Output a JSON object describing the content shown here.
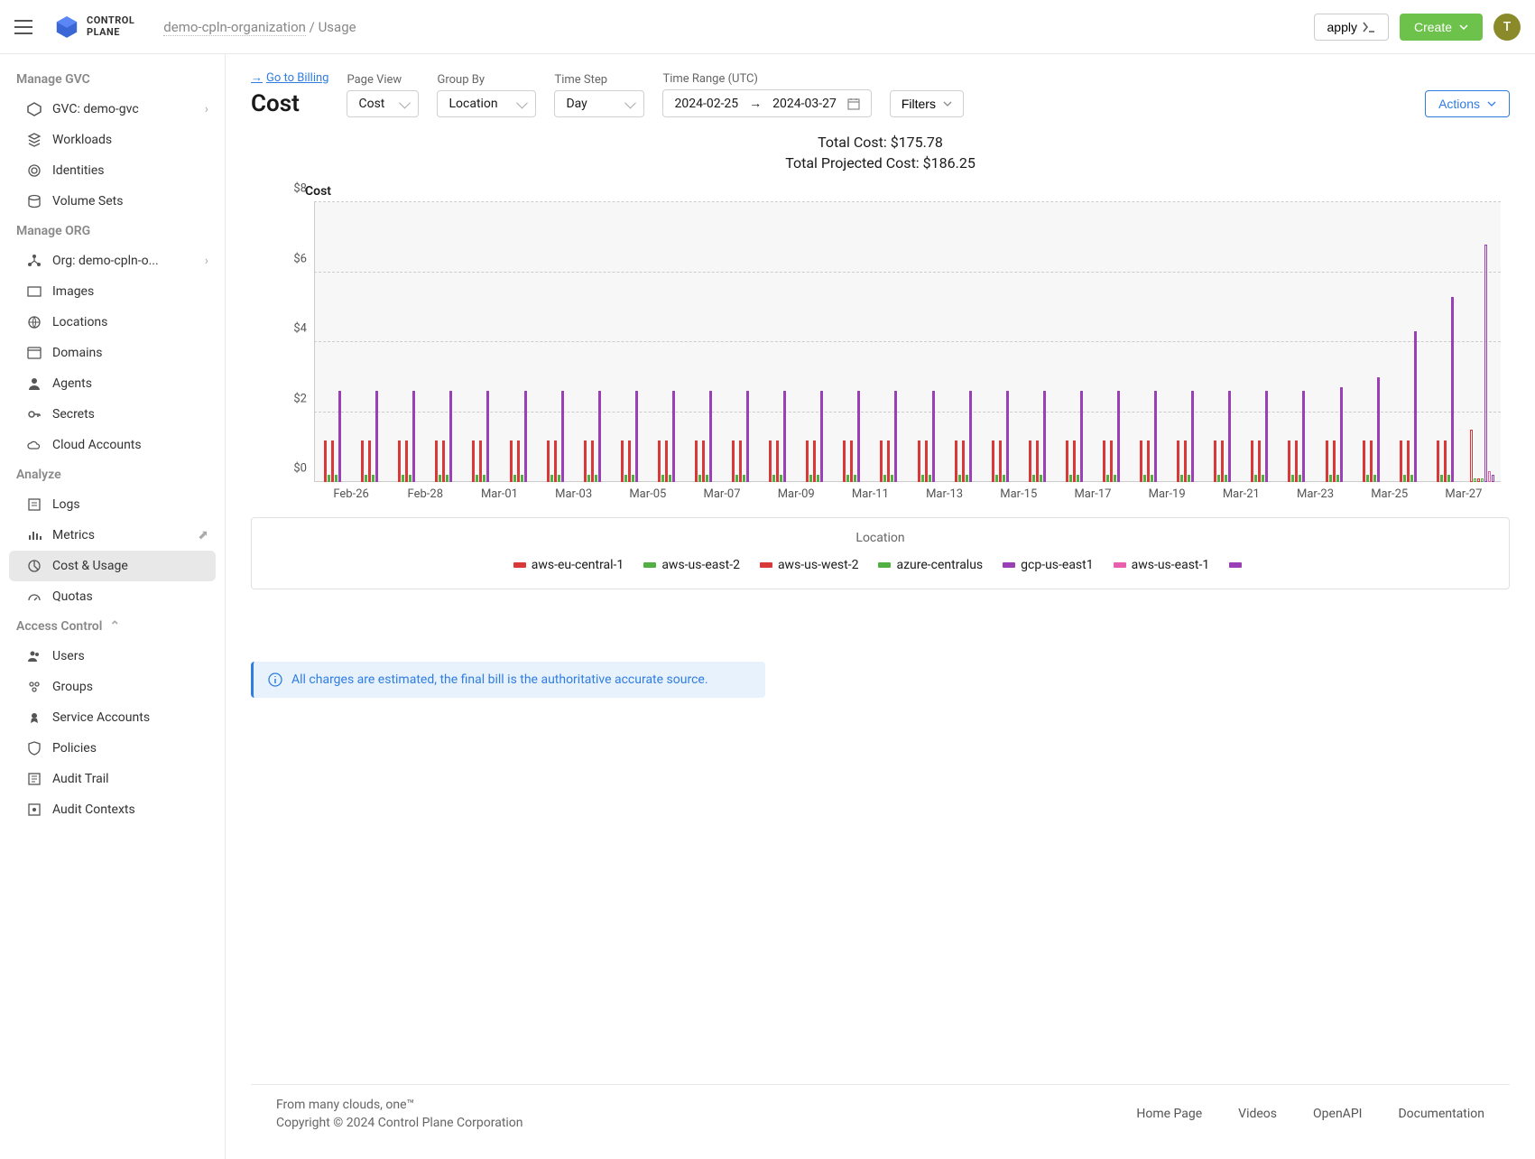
{
  "header": {
    "logo_text_1": "CONTROL",
    "logo_text_2": "PLANE",
    "breadcrumb_org": "demo-cpln-organization",
    "breadcrumb_sep": " / ",
    "breadcrumb_page": "Usage",
    "apply_label": "apply",
    "create_label": "Create",
    "avatar_letter": "T"
  },
  "sidebar": {
    "sections": {
      "gvc": "Manage GVC",
      "org": "Manage ORG",
      "analyze": "Analyze",
      "access": "Access Control"
    },
    "items": {
      "gvc": "GVC: demo-gvc",
      "workloads": "Workloads",
      "identities": "Identities",
      "volume_sets": "Volume Sets",
      "org_item": "Org: demo-cpln-o...",
      "images": "Images",
      "locations": "Locations",
      "domains": "Domains",
      "agents": "Agents",
      "secrets": "Secrets",
      "cloud_accounts": "Cloud Accounts",
      "logs": "Logs",
      "metrics": "Metrics",
      "cost_usage": "Cost & Usage",
      "quotas": "Quotas",
      "users": "Users",
      "groups": "Groups",
      "service_accounts": "Service Accounts",
      "policies": "Policies",
      "audit_trail": "Audit Trail",
      "audit_contexts": "Audit Contexts"
    }
  },
  "toolbar": {
    "go_to_billing": "Go to Billing",
    "page_title": "Cost",
    "page_view_label": "Page View",
    "page_view_value": "Cost",
    "group_by_label": "Group By",
    "group_by_value": "Location",
    "time_step_label": "Time Step",
    "time_step_value": "Day",
    "time_range_label": "Time Range (UTC)",
    "date_from": "2024-02-25",
    "date_to": "2024-03-27",
    "filters_label": "Filters",
    "actions_label": "Actions"
  },
  "totals": {
    "total_cost": "Total Cost: $175.78",
    "total_projected": "Total Projected Cost: $186.25"
  },
  "chart": {
    "type": "grouped-bar",
    "y_title": "Cost",
    "ylim": [
      0,
      8
    ],
    "ytick_step": 2,
    "yticks": [
      "$0",
      "$2",
      "$4",
      "$6",
      "$8"
    ],
    "background_color": "#f7f7f7",
    "grid_color": "#cccccc",
    "series": [
      {
        "name": "aws-eu-central-1",
        "color": "#d93838"
      },
      {
        "name": "aws-us-east-2",
        "color": "#52b043"
      },
      {
        "name": "aws-us-west-2",
        "color": "#d93838"
      },
      {
        "name": "azure-centralus",
        "color": "#52b043"
      },
      {
        "name": "gcp-us-east1",
        "color": "#9a3fb5"
      },
      {
        "name": "aws-us-east-1",
        "color": "#e85fb0"
      },
      {
        "name": "",
        "color": "#9a3fb5"
      }
    ],
    "days": [
      {
        "label": "",
        "v": [
          1.2,
          0.2,
          1.2,
          0.2,
          2.6,
          0,
          0
        ]
      },
      {
        "label": "Feb-26",
        "v": [
          1.2,
          0.2,
          1.2,
          0.2,
          2.6,
          0,
          0
        ]
      },
      {
        "label": "",
        "v": [
          1.2,
          0.2,
          1.2,
          0.2,
          2.6,
          0,
          0
        ]
      },
      {
        "label": "Feb-28",
        "v": [
          1.2,
          0.2,
          1.2,
          0.2,
          2.6,
          0,
          0
        ]
      },
      {
        "label": "",
        "v": [
          1.2,
          0.2,
          1.2,
          0.2,
          2.6,
          0,
          0
        ]
      },
      {
        "label": "Mar-01",
        "v": [
          1.2,
          0.2,
          1.2,
          0.2,
          2.6,
          0,
          0
        ]
      },
      {
        "label": "",
        "v": [
          1.2,
          0.2,
          1.2,
          0.2,
          2.6,
          0,
          0
        ]
      },
      {
        "label": "Mar-03",
        "v": [
          1.2,
          0.2,
          1.2,
          0.2,
          2.6,
          0,
          0
        ]
      },
      {
        "label": "",
        "v": [
          1.2,
          0.2,
          1.2,
          0.2,
          2.6,
          0,
          0
        ]
      },
      {
        "label": "Mar-05",
        "v": [
          1.2,
          0.2,
          1.2,
          0.2,
          2.6,
          0,
          0
        ]
      },
      {
        "label": "",
        "v": [
          1.2,
          0.2,
          1.2,
          0.2,
          2.6,
          0,
          0
        ]
      },
      {
        "label": "Mar-07",
        "v": [
          1.2,
          0.2,
          1.2,
          0.2,
          2.6,
          0,
          0
        ]
      },
      {
        "label": "",
        "v": [
          1.2,
          0.2,
          1.2,
          0.2,
          2.6,
          0,
          0
        ]
      },
      {
        "label": "Mar-09",
        "v": [
          1.2,
          0.2,
          1.2,
          0.2,
          2.6,
          0,
          0
        ]
      },
      {
        "label": "",
        "v": [
          1.2,
          0.2,
          1.2,
          0.2,
          2.6,
          0,
          0
        ]
      },
      {
        "label": "Mar-11",
        "v": [
          1.2,
          0.2,
          1.2,
          0.2,
          2.6,
          0,
          0
        ]
      },
      {
        "label": "",
        "v": [
          1.2,
          0.2,
          1.2,
          0.2,
          2.6,
          0,
          0
        ]
      },
      {
        "label": "Mar-13",
        "v": [
          1.2,
          0.2,
          1.2,
          0.2,
          2.6,
          0,
          0
        ]
      },
      {
        "label": "",
        "v": [
          1.2,
          0.2,
          1.2,
          0.2,
          2.6,
          0,
          0
        ]
      },
      {
        "label": "Mar-15",
        "v": [
          1.2,
          0.2,
          1.2,
          0.2,
          2.6,
          0,
          0
        ]
      },
      {
        "label": "",
        "v": [
          1.2,
          0.2,
          1.2,
          0.2,
          2.6,
          0,
          0
        ]
      },
      {
        "label": "Mar-17",
        "v": [
          1.2,
          0.2,
          1.2,
          0.2,
          2.6,
          0,
          0
        ]
      },
      {
        "label": "",
        "v": [
          1.2,
          0.2,
          1.2,
          0.2,
          2.6,
          0,
          0
        ]
      },
      {
        "label": "Mar-19",
        "v": [
          1.2,
          0.2,
          1.2,
          0.2,
          2.6,
          0,
          0
        ]
      },
      {
        "label": "",
        "v": [
          1.2,
          0.2,
          1.2,
          0.2,
          2.6,
          0,
          0
        ]
      },
      {
        "label": "Mar-21",
        "v": [
          1.2,
          0.2,
          1.2,
          0.2,
          2.6,
          0,
          0
        ]
      },
      {
        "label": "",
        "v": [
          1.2,
          0.2,
          1.2,
          0.2,
          2.6,
          0,
          0
        ]
      },
      {
        "label": "Mar-23",
        "v": [
          1.2,
          0.2,
          1.2,
          0.2,
          2.7,
          0,
          0
        ]
      },
      {
        "label": "",
        "v": [
          1.2,
          0.2,
          1.2,
          0.2,
          3.0,
          0,
          0
        ]
      },
      {
        "label": "Mar-25",
        "v": [
          1.2,
          0.2,
          1.2,
          0.2,
          4.3,
          0,
          0
        ]
      },
      {
        "label": "",
        "v": [
          1.2,
          0.2,
          1.2,
          0.2,
          5.3,
          0,
          0
        ]
      },
      {
        "label": "Mar-27",
        "v": [
          1.5,
          0.1,
          0.1,
          0.1,
          6.8,
          0.3,
          0.2
        ],
        "outline": true
      }
    ],
    "x_labels": [
      "Feb-26",
      "Feb-28",
      "Mar-01",
      "Mar-03",
      "Mar-05",
      "Mar-07",
      "Mar-09",
      "Mar-11",
      "Mar-13",
      "Mar-15",
      "Mar-17",
      "Mar-19",
      "Mar-21",
      "Mar-23",
      "Mar-25",
      "Mar-27"
    ]
  },
  "legend_title": "Location",
  "alert_text": "All charges are estimated, the final bill is the authoritative accurate source.",
  "footer": {
    "tagline": "From many clouds, one™",
    "copyright": "Copyright © 2024 Control Plane Corporation",
    "links": [
      "Home Page",
      "Videos",
      "OpenAPI",
      "Documentation"
    ]
  },
  "colors": {
    "accent": "#2f7de1",
    "create_btn": "#6cc24a",
    "avatar_bg": "#8a8a2a"
  }
}
